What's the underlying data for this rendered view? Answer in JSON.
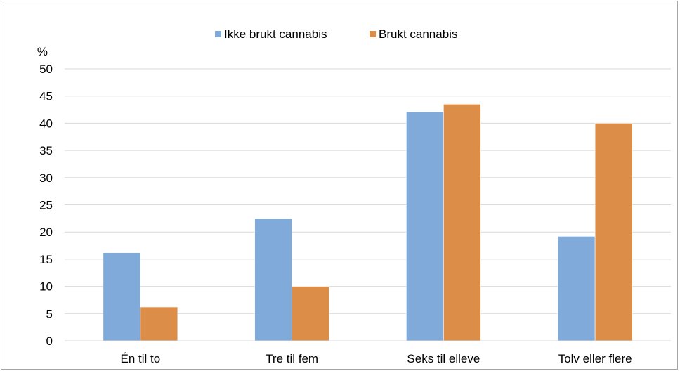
{
  "chart_data": {
    "type": "bar",
    "categories": [
      "Én til to",
      "Tre til fem",
      "Seks til elleve",
      "Tolv eller flere"
    ],
    "series": [
      {
        "name": "Ikke brukt cannabis",
        "values": [
          16.2,
          22.5,
          42.1,
          19.2
        ],
        "color": "#7faad9"
      },
      {
        "name": "Brukt cannabis",
        "values": [
          6.2,
          10.0,
          43.5,
          40.0
        ],
        "color": "#dc8d47"
      }
    ],
    "y_unit_label": "%",
    "ylim": [
      0,
      50
    ],
    "yticks": [
      0,
      5,
      10,
      15,
      20,
      25,
      30,
      35,
      40,
      45,
      50
    ],
    "grid": true,
    "legend_position": "top-center"
  }
}
